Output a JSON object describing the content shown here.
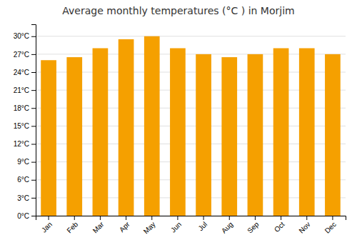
{
  "chart_data": {
    "type": "bar",
    "title": "Average monthly temperatures (°C ) in Morjim",
    "categories": [
      "Jan",
      "Feb",
      "Mar",
      "Apr",
      "May",
      "Jun",
      "Jul",
      "Aug",
      "Sep",
      "Oct",
      "Nov",
      "Dec"
    ],
    "values": [
      26.0,
      26.5,
      28.0,
      29.5,
      30.0,
      28.0,
      27.0,
      26.5,
      27.0,
      28.0,
      28.0,
      27.0
    ],
    "color": "#F5A000",
    "ylim": [
      0,
      32
    ],
    "yticks": [
      {
        "value": 0,
        "label": "0°C"
      },
      {
        "value": 3,
        "label": "3°C"
      },
      {
        "value": 6,
        "label": "6°C"
      },
      {
        "value": 9,
        "label": "9°C"
      },
      {
        "value": 12,
        "label": "12°C"
      },
      {
        "value": 15,
        "label": "15°C"
      },
      {
        "value": 18,
        "label": "18°C"
      },
      {
        "value": 21,
        "label": "21°C"
      },
      {
        "value": 24,
        "label": "24°C"
      },
      {
        "value": 27,
        "label": "27°C"
      },
      {
        "value": 30,
        "label": "30°C"
      }
    ],
    "grid": true
  }
}
